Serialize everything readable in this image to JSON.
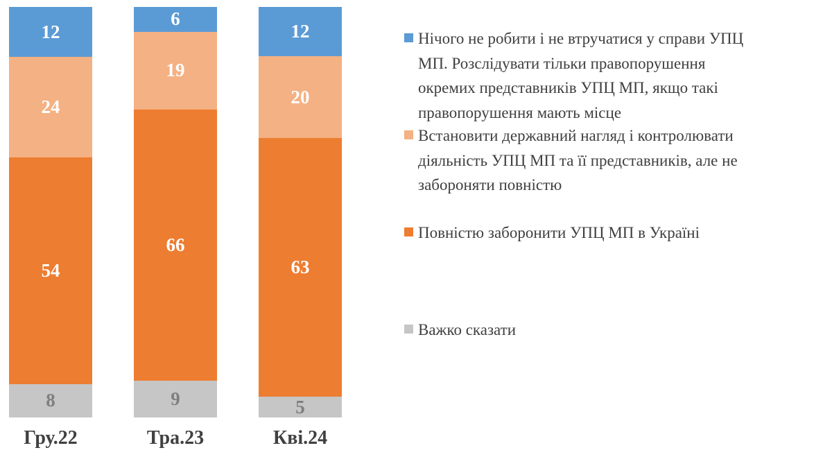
{
  "chart_data": {
    "type": "bar",
    "variant": "stacked-100-percent-column",
    "title": "",
    "xlabel": "",
    "ylabel": "",
    "grid": false,
    "y_axis_visible": false,
    "data_labels": "inside-center",
    "legend_position": "right",
    "categories": [
      "Гру.22",
      "Тра.23",
      "Кві.24"
    ],
    "series": [
      {
        "name": "Нічого не робити і не втручатися у справи УПЦ МП. Розслідувати тільки правопорушення окремих представників УПЦ МП, якщо такі правопорушення мають місце",
        "color": "#5B9BD5",
        "label_color": "#FFFFFF",
        "values": [
          12,
          6,
          12
        ]
      },
      {
        "name": "Встановити державний нагляд і контролювати діяльність УПЦ МП та її представників, але не забороняти повністю",
        "color": "#F4B183",
        "label_color": "#FFFFFF",
        "values": [
          24,
          19,
          20
        ]
      },
      {
        "name": "Повністю заборонити УПЦ МП в Україні",
        "color": "#ED7D31",
        "label_color": "#FFFFFF",
        "values": [
          54,
          66,
          63
        ]
      },
      {
        "name": "Важко сказати",
        "color": "#C6C6C6",
        "label_color": "#7F7F7F",
        "values": [
          8,
          9,
          5
        ]
      }
    ],
    "x_label_color": "#404040"
  },
  "legend": {
    "text_color": "#3F3F3F",
    "items": [
      {
        "label": "Нічого не робити і не втручатися у справи УПЦ\nМП. Розслідувати тільки правопорушення\nокремих представників УПЦ МП, якщо такі\nправопорушення мають місце",
        "color": "#5B9BD5"
      },
      {
        "label": "Встановити державний нагляд і контролювати\nдіяльність УПЦ МП та її представників, але не\nзабороняти повністю",
        "color": "#F4B183"
      },
      {
        "label": "Повністю заборонити УПЦ МП в Україні",
        "color": "#ED7D31"
      },
      {
        "label": "Важко сказати",
        "color": "#C6C6C6"
      }
    ]
  }
}
